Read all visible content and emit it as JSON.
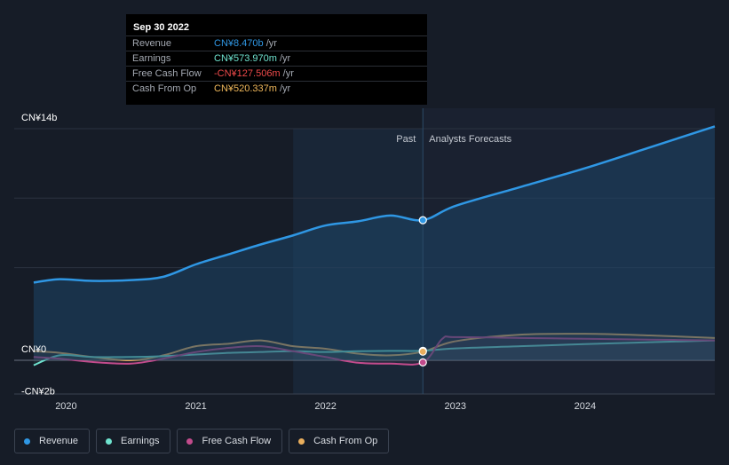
{
  "tooltip": {
    "date": "Sep 30 2022",
    "rows": [
      {
        "name": "Revenue",
        "value": "CN¥8.470b",
        "unit": "/yr",
        "color": "#2f97e4"
      },
      {
        "name": "Earnings",
        "value": "CN¥573.970m",
        "unit": "/yr",
        "color": "#6fe3cf"
      },
      {
        "name": "Free Cash Flow",
        "value": "-CN¥127.506m",
        "unit": "/yr",
        "color": "#ef4a4a"
      },
      {
        "name": "Cash From Op",
        "value": "CN¥520.337m",
        "unit": "/yr",
        "color": "#f0b85b"
      }
    ]
  },
  "regions": {
    "past": "Past",
    "forecast": "Analysts Forecasts"
  },
  "legend": [
    {
      "label": "Revenue",
      "color": "#2f97e4"
    },
    {
      "label": "Earnings",
      "color": "#6fe3cf"
    },
    {
      "label": "Free Cash Flow",
      "color": "#c24b8c"
    },
    {
      "label": "Cash From Op",
      "color": "#e9ae5d"
    }
  ],
  "chart_data": {
    "type": "line",
    "y_tick_labels": [
      "CN¥14b",
      "CN¥0",
      "-CN¥2b"
    ],
    "x_tick_labels": [
      "2020",
      "2021",
      "2022",
      "2023",
      "2024"
    ],
    "ylim": [
      -2,
      14
    ],
    "xlim": [
      2019.6,
      2025.0
    ],
    "past_boundary": 2022.75,
    "series": [
      {
        "name": "Revenue",
        "color": "#2f97e4",
        "area": true,
        "x": [
          2019.75,
          2019.95,
          2020.2,
          2020.5,
          2020.75,
          2021.0,
          2021.25,
          2021.5,
          2021.75,
          2022.0,
          2022.25,
          2022.5,
          2022.75,
          2023.0,
          2023.5,
          2024.0,
          2024.5,
          2025.0
        ],
        "y": [
          4.7,
          4.9,
          4.8,
          4.85,
          5.05,
          5.8,
          6.4,
          7.0,
          7.55,
          8.15,
          8.4,
          8.75,
          8.47,
          9.33,
          10.47,
          11.61,
          12.87,
          14.14
        ]
      },
      {
        "name": "Earnings",
        "color": "#6fe3cf",
        "x": [
          2019.75,
          2019.95,
          2020.2,
          2020.5,
          2020.75,
          2021.0,
          2021.25,
          2021.5,
          2021.75,
          2022.0,
          2022.25,
          2022.5,
          2022.75,
          2023.0,
          2023.5,
          2024.0,
          2024.5,
          2025.0
        ],
        "y": [
          -0.3,
          0.3,
          0.2,
          0.2,
          0.25,
          0.35,
          0.45,
          0.5,
          0.55,
          0.5,
          0.55,
          0.57,
          0.574,
          0.72,
          0.85,
          0.98,
          1.09,
          1.2
        ]
      },
      {
        "name": "Free Cash Flow",
        "color": "#c24b8c",
        "x": [
          2019.75,
          2019.95,
          2020.2,
          2020.5,
          2020.75,
          2021.0,
          2021.25,
          2021.5,
          2021.75,
          2022.0,
          2022.25,
          2022.5,
          2022.75,
          2022.9,
          2023.0,
          2023.5,
          2024.0,
          2024.5,
          2025.0
        ],
        "y": [
          0.2,
          0.1,
          -0.1,
          -0.2,
          0.1,
          0.5,
          0.75,
          0.85,
          0.55,
          0.2,
          -0.15,
          -0.2,
          -0.128,
          1.3,
          1.4,
          1.35,
          1.3,
          1.25,
          1.2
        ]
      },
      {
        "name": "Cash From Op",
        "color": "#e9ae5d",
        "x": [
          2019.75,
          2019.95,
          2020.2,
          2020.5,
          2020.75,
          2021.0,
          2021.25,
          2021.5,
          2021.75,
          2022.0,
          2022.25,
          2022.5,
          2022.75,
          2023.0,
          2023.5,
          2024.0,
          2024.5,
          2025.0
        ],
        "y": [
          0.55,
          0.45,
          0.2,
          0.0,
          0.3,
          0.85,
          1.0,
          1.2,
          0.85,
          0.7,
          0.4,
          0.3,
          0.52,
          1.15,
          1.55,
          1.6,
          1.5,
          1.35
        ]
      }
    ],
    "highlight": {
      "x": 2022.75,
      "values": [
        8.47,
        0.574,
        -0.128,
        0.52
      ]
    }
  }
}
